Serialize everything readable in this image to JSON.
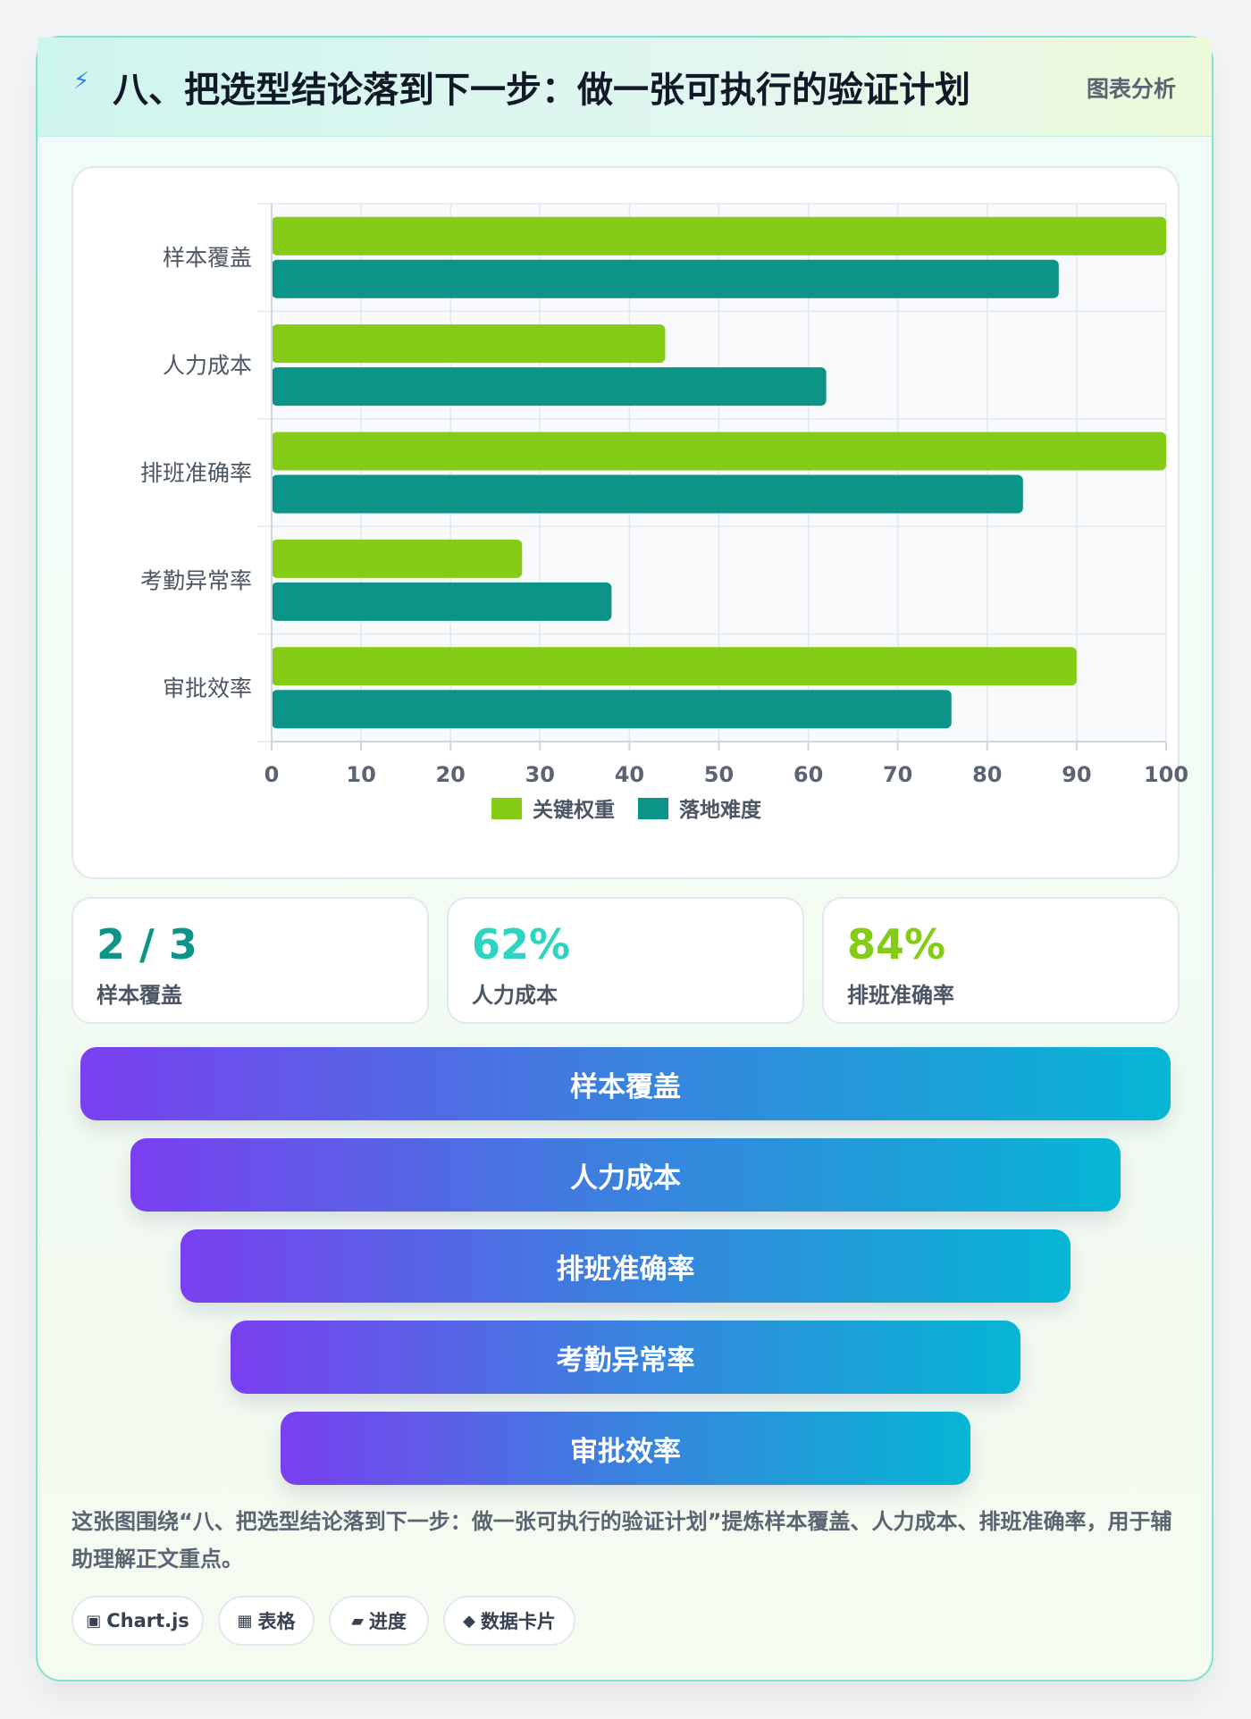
{
  "header": {
    "icon": "bolt-icon",
    "title": "八、把选型结论落到下一步：做一张可执行的验证计划",
    "tag": "图表分析"
  },
  "chart_data": {
    "type": "bar",
    "orientation": "horizontal",
    "categories": [
      "样本覆盖",
      "人力成本",
      "排班准确率",
      "考勤异常率",
      "审批效率"
    ],
    "series": [
      {
        "name": "关键权重",
        "values": [
          100,
          44,
          100,
          28,
          90
        ],
        "color": "#84cc16"
      },
      {
        "name": "落地难度",
        "values": [
          88,
          62,
          84,
          38,
          76
        ],
        "color": "#0d9488"
      }
    ],
    "xlim": [
      0,
      100
    ],
    "xticks": [
      0,
      10,
      20,
      30,
      40,
      50,
      60,
      70,
      80,
      90,
      100
    ],
    "grid": true,
    "legend": "bottom"
  },
  "kpis": [
    {
      "value": "2 / 3",
      "label": "样本覆盖",
      "color": "#0d9488"
    },
    {
      "value": "62%",
      "label": "人力成本",
      "color": "#2dd4bf"
    },
    {
      "value": "84%",
      "label": "排班准确率",
      "color": "#84cc16"
    }
  ],
  "funnel": [
    "样本覆盖",
    "人力成本",
    "排班准确率",
    "考勤异常率",
    "审批效率"
  ],
  "summary": "这张图围绕“八、把选型结论落到下一步：做一张可执行的验证计划”提炼样本覆盖、人力成本、排班准确率，用于辅助理解正文重点。",
  "chips": [
    {
      "icon": "▣",
      "label": "Chart.js"
    },
    {
      "icon": "▦",
      "label": "表格"
    },
    {
      "icon": "▰",
      "label": "进度"
    },
    {
      "icon": "◆",
      "label": "数据卡片"
    }
  ]
}
